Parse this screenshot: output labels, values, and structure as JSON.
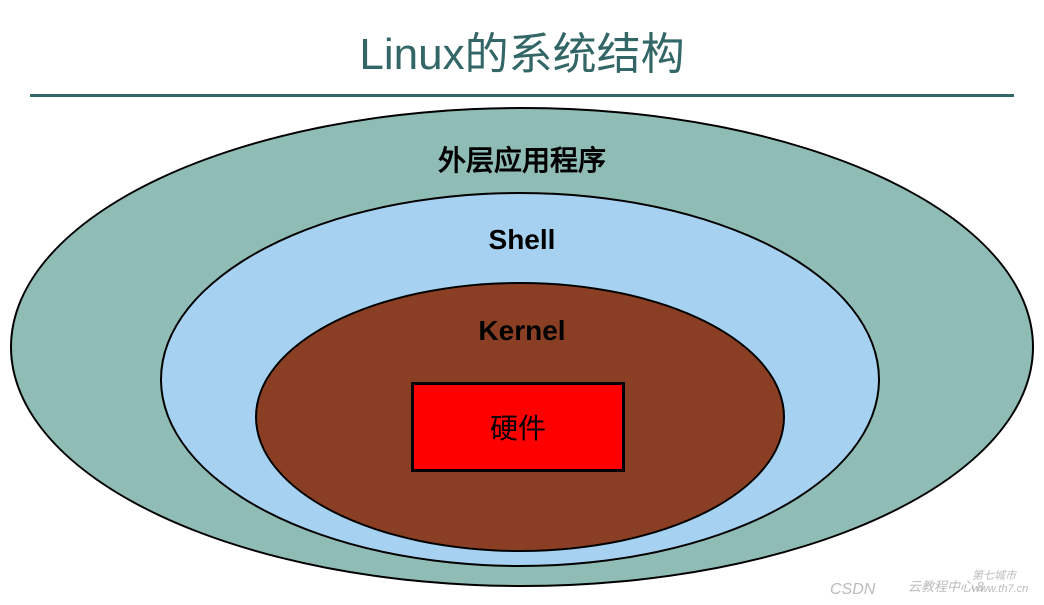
{
  "title": {
    "text": "Linux的系统结构",
    "color": "#336666",
    "fontsize": 44
  },
  "underline": {
    "color": "#336666",
    "width": 3
  },
  "diagram": {
    "type": "nested-ellipse",
    "background": "#ffffff",
    "layers": {
      "outer": {
        "label": "外层应用程序",
        "label_fontsize": 28,
        "label_color": "#000000",
        "fill": "#8fbcb4",
        "border_color": "#000000",
        "border_width": 2
      },
      "middle": {
        "label": "Shell",
        "label_fontsize": 28,
        "label_color": "#000000",
        "fill": "#a7d1f0",
        "border_color": "#000000",
        "border_width": 2
      },
      "inner": {
        "label": "Kernel",
        "label_fontsize": 28,
        "label_color": "#000000",
        "fill": "#8a3e24",
        "border_color": "#000000",
        "border_width": 2
      },
      "hardware": {
        "label": "硬件",
        "label_fontsize": 28,
        "label_color": "#000000",
        "fill": "#ff0000",
        "border_color": "#000000",
        "border_width": 3
      }
    }
  },
  "watermarks": {
    "left": "CSDN",
    "center": "云教程中心.8",
    "right": "第七城市  www.th7.cn"
  }
}
